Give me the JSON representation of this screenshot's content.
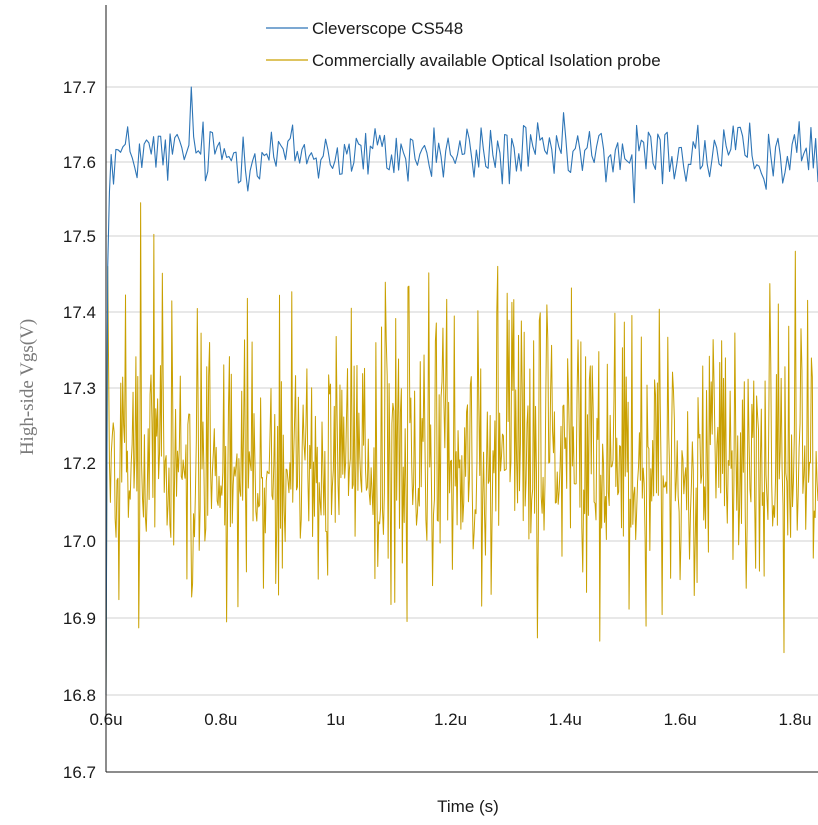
{
  "chart_data": {
    "type": "line",
    "xlabel": "Time (s)",
    "ylabel": "High-side Vgs(V)",
    "x_tick_labels": [
      "0.6u",
      "0.8u",
      "1u",
      "1.2u",
      "1.4u",
      "1.6u",
      "1.8u"
    ],
    "x_ticks": [
      6e-07,
      8e-07,
      1e-06,
      1.2e-06,
      1.4e-06,
      1.6e-06,
      1.8e-06
    ],
    "xlim": [
      6e-07,
      1.84e-06
    ],
    "y_tick_labels": [
      "17.7",
      "17.6",
      "17.5",
      "17.4",
      "17.3",
      "17.2",
      "17.0",
      "16.9",
      "16.8",
      "16.7"
    ],
    "legend_position": "top",
    "grid": "horizontal",
    "series": [
      {
        "name": "Cleverscope CS548",
        "color": "#2e75b6",
        "x_start": 6e-07,
        "x_end": 1.84e-06,
        "points": 300,
        "mean": 17.61,
        "min": 17.545,
        "max": 17.705,
        "onset": [
          [
            6e-07,
            16.8
          ],
          [
            6.03e-07,
            17.46
          ],
          [
            6.06e-07,
            17.56
          ],
          [
            6.09e-07,
            17.61
          ]
        ],
        "annotated_extremes": [
          [
            7.5e-07,
            17.705
          ],
          [
            1.52e-06,
            17.545
          ]
        ]
      },
      {
        "name": "Commercially available Optical Isolation probe",
        "color": "#c9a000",
        "x_start": 6e-07,
        "x_end": 1.84e-06,
        "points": 750,
        "mean": 17.18,
        "min": 16.855,
        "max": 17.545,
        "onset": [
          [
            6e-07,
            16.8
          ],
          [
            6.03e-07,
            17.46
          ],
          [
            6.06e-07,
            17.2
          ]
        ],
        "annotated_extremes": [
          [
            6.6e-07,
            17.545
          ],
          [
            1.78e-06,
            16.855
          ],
          [
            1.8e-06,
            17.48
          ],
          [
            1.46e-06,
            16.87
          ]
        ]
      }
    ]
  }
}
